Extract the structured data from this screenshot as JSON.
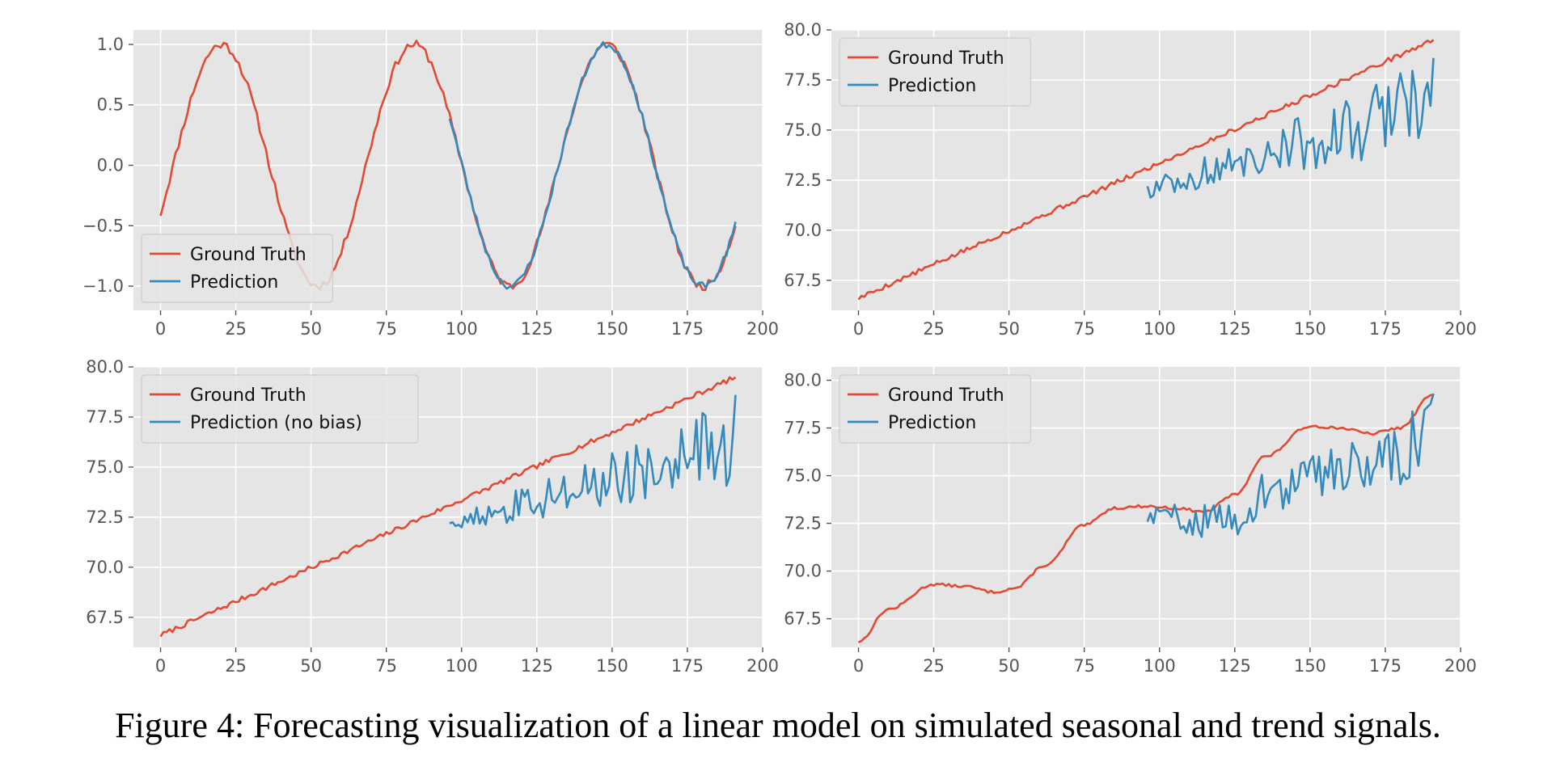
{
  "caption": "Figure 4: Forecasting visualization of a linear model on simulated seasonal and trend signals.",
  "style": {
    "panel_bg": "#E5E5E5",
    "grid": "#FFFFFF",
    "ground_truth_color": "#E24A33",
    "prediction_color": "#348ABD",
    "legend_bg": "#E5E5E5",
    "legend_border": "#CCCCCC"
  },
  "chart_data": [
    {
      "type": "line",
      "xlim": [
        -9,
        200
      ],
      "ylim": [
        -1.2,
        1.12
      ],
      "xticks": [
        0,
        25,
        50,
        75,
        100,
        125,
        150,
        175,
        200
      ],
      "yticks": [
        1.0,
        0.5,
        0.0,
        -0.5,
        -1.0
      ],
      "ytick_labels": [
        "1.0",
        "0.5",
        "0.0",
        "−0.5",
        "−1.0"
      ],
      "legend_position": "lower-left",
      "series": [
        {
          "name": "Ground Truth",
          "color": "#E24A33",
          "kind": "seasonal",
          "amplitude": 1.0,
          "period": 64,
          "phase": -0.4,
          "noise": 0.035,
          "x_start": 0,
          "x_end": 191,
          "seed": 11
        },
        {
          "name": "Prediction",
          "color": "#348ABD",
          "kind": "seasonal",
          "amplitude": 1.0,
          "period": 64,
          "phase": -0.4,
          "noise": 0.03,
          "x_start": 96,
          "x_end": 191,
          "seed": 23
        }
      ]
    },
    {
      "type": "line",
      "xlim": [
        -9,
        200
      ],
      "ylim": [
        66.0,
        80.0
      ],
      "xticks": [
        0,
        25,
        50,
        75,
        100,
        125,
        150,
        175,
        200
      ],
      "yticks": [
        80.0,
        77.5,
        75.0,
        72.5,
        70.0,
        67.5
      ],
      "ytick_labels": [
        "80.0",
        "77.5",
        "75.0",
        "72.5",
        "70.0",
        "67.5"
      ],
      "legend_position": "upper-left",
      "series": [
        {
          "name": "Ground Truth",
          "color": "#E24A33",
          "kind": "linear",
          "start": 66.6,
          "end": 79.5,
          "noise": 0.12,
          "x_start": 0,
          "x_end": 191,
          "seed": 5
        },
        {
          "name": "Prediction",
          "color": "#348ABD",
          "kind": "noisy_below",
          "start": 72.4,
          "end": 78.6,
          "spread_start": 0.8,
          "spread_end": 4.5,
          "x_start": 96,
          "x_end": 191,
          "seed": 41
        }
      ]
    },
    {
      "type": "line",
      "xlim": [
        -9,
        200
      ],
      "ylim": [
        66.0,
        80.0
      ],
      "xticks": [
        0,
        25,
        50,
        75,
        100,
        125,
        150,
        175,
        200
      ],
      "yticks": [
        80.0,
        77.5,
        75.0,
        72.5,
        70.0,
        67.5
      ],
      "ytick_labels": [
        "80.0",
        "77.5",
        "75.0",
        "72.5",
        "70.0",
        "67.5"
      ],
      "legend_position": "upper-left",
      "series": [
        {
          "name": "Ground Truth",
          "color": "#E24A33",
          "kind": "linear",
          "start": 66.6,
          "end": 79.5,
          "noise": 0.12,
          "x_start": 0,
          "x_end": 191,
          "seed": 7
        },
        {
          "name": "Prediction (no bias)",
          "color": "#348ABD",
          "kind": "noisy_below",
          "start": 72.4,
          "end": 78.6,
          "spread_start": 0.8,
          "spread_end": 4.5,
          "x_start": 96,
          "x_end": 191,
          "seed": 77
        }
      ]
    },
    {
      "type": "line",
      "xlim": [
        -9,
        200
      ],
      "ylim": [
        66.0,
        80.7
      ],
      "xticks": [
        0,
        25,
        50,
        75,
        100,
        125,
        150,
        175,
        200
      ],
      "yticks": [
        80.0,
        77.5,
        75.0,
        72.5,
        70.0,
        67.5
      ],
      "ytick_labels": [
        "80.0",
        "77.5",
        "75.0",
        "72.5",
        "70.0",
        "67.5"
      ],
      "legend_position": "upper-left",
      "series": [
        {
          "name": "Ground Truth",
          "color": "#E24A33",
          "kind": "piecewise",
          "knots": [
            [
              0,
              66.3
            ],
            [
              10,
              68.0
            ],
            [
              25,
              69.3
            ],
            [
              35,
              69.2
            ],
            [
              45,
              68.9
            ],
            [
              52,
              69.1
            ],
            [
              62,
              70.3
            ],
            [
              75,
              72.4
            ],
            [
              85,
              73.3
            ],
            [
              95,
              73.4
            ],
            [
              105,
              73.3
            ],
            [
              115,
              73.1
            ],
            [
              125,
              74.0
            ],
            [
              135,
              76.0
            ],
            [
              150,
              77.6
            ],
            [
              160,
              77.5
            ],
            [
              170,
              77.2
            ],
            [
              180,
              77.5
            ],
            [
              191,
              79.3
            ]
          ],
          "noise": 0.07,
          "x_start": 0,
          "x_end": 191,
          "seed": 13
        },
        {
          "name": "Prediction",
          "color": "#348ABD",
          "kind": "noisy_around",
          "knots": [
            [
              96,
              73.0
            ],
            [
              120,
              72.8
            ],
            [
              140,
              74.5
            ],
            [
              160,
              75.8
            ],
            [
              175,
              76.3
            ],
            [
              185,
              77.0
            ],
            [
              191,
              79.3
            ]
          ],
          "spread_start": 1.2,
          "spread_end": 4.0,
          "x_start": 96,
          "x_end": 191,
          "seed": 59
        }
      ]
    }
  ]
}
